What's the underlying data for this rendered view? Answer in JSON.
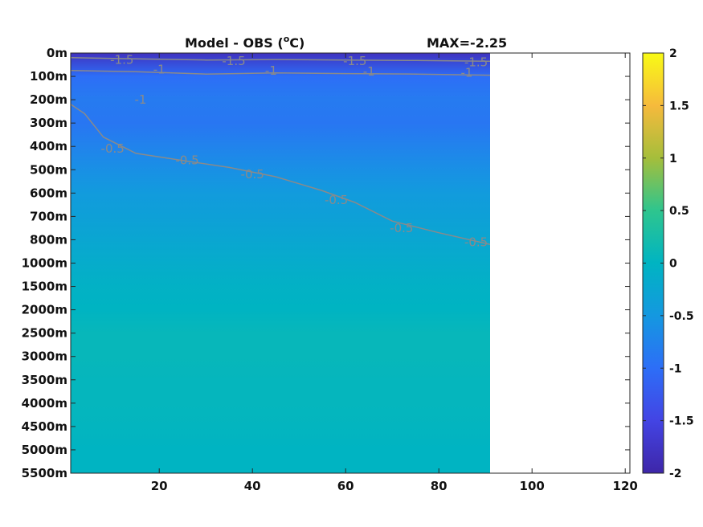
{
  "chart_data": {
    "type": "heatmap",
    "title": "Model - OBS (",
    "title_unit": "oC",
    "title_unit_superscript": "o",
    "title_unit_letter": "C",
    "title_close": ")",
    "max_label": "MAX=-2.25",
    "x_ticks": [
      20,
      40,
      60,
      80,
      100,
      120
    ],
    "xlim": [
      1,
      121
    ],
    "data_xmax": 91,
    "y_tick_labels": [
      "0m",
      "100m",
      "200m",
      "300m",
      "400m",
      "500m",
      "600m",
      "700m",
      "800m",
      "1000m",
      "1500m",
      "2000m",
      "2500m",
      "3000m",
      "3500m",
      "4000m",
      "4500m",
      "5000m",
      "5500m"
    ],
    "colorbar": {
      "ticks": [
        2,
        1.5,
        1,
        0.5,
        0,
        -0.5,
        -1,
        -1.5,
        -2
      ],
      "tick_labels": [
        "2",
        "1.5",
        "1",
        "0.5",
        "0",
        "-0.5",
        "-1",
        "-1.5",
        "-2"
      ],
      "range": [
        -2,
        2
      ],
      "colormap": "parula"
    },
    "field_rows": [
      {
        "depth": "0m",
        "value": -1.8
      },
      {
        "depth": "100m",
        "value": -1.0
      },
      {
        "depth": "200m",
        "value": -0.85
      },
      {
        "depth": "300m",
        "value": -0.9
      },
      {
        "depth": "400m",
        "value": -0.75
      },
      {
        "depth": "500m",
        "value": -0.6
      },
      {
        "depth": "600m",
        "value": -0.45
      },
      {
        "depth": "700m",
        "value": -0.35
      },
      {
        "depth": "800m",
        "value": -0.25
      },
      {
        "depth": "1000m",
        "value": -0.15
      },
      {
        "depth": "1500m",
        "value": -0.05
      },
      {
        "depth": "2000m",
        "value": 0.0
      },
      {
        "depth": "2500m",
        "value": 0.08
      },
      {
        "depth": "3000m",
        "value": 0.08
      },
      {
        "depth": "3500m",
        "value": 0.05
      },
      {
        "depth": "4000m",
        "value": 0.05
      },
      {
        "depth": "4500m",
        "value": 0.03
      },
      {
        "depth": "5000m",
        "value": 0.0
      },
      {
        "depth": "5500m",
        "value": 0.0
      }
    ],
    "contour_labels": [
      {
        "text": "-1.5",
        "x": 12,
        "depth_index": 0.3
      },
      {
        "text": "-1.5",
        "x": 36,
        "depth_index": 0.35
      },
      {
        "text": "-1.5",
        "x": 62,
        "depth_index": 0.35
      },
      {
        "text": "-1.5",
        "x": 88,
        "depth_index": 0.4
      },
      {
        "text": "-1",
        "x": 20,
        "depth_index": 0.7
      },
      {
        "text": "-1",
        "x": 44,
        "depth_index": 0.75
      },
      {
        "text": "-1",
        "x": 65,
        "depth_index": 0.8
      },
      {
        "text": "-1",
        "x": 86,
        "depth_index": 0.85
      },
      {
        "text": "-1",
        "x": 16,
        "depth_index": 2.0
      },
      {
        "text": "-0.5",
        "x": 10,
        "depth_index": 4.1
      },
      {
        "text": "-0.5",
        "x": 26,
        "depth_index": 4.6
      },
      {
        "text": "-0.5",
        "x": 40,
        "depth_index": 5.2
      },
      {
        "text": "-0.5",
        "x": 58,
        "depth_index": 6.3
      },
      {
        "text": "-0.5",
        "x": 72,
        "depth_index": 7.5
      },
      {
        "text": "-0.5",
        "x": 88,
        "depth_index": 8.1
      }
    ],
    "contour_lines": [
      {
        "level": -1.5,
        "points": [
          [
            1,
            0.2
          ],
          [
            15,
            0.25
          ],
          [
            30,
            0.3
          ],
          [
            45,
            0.28
          ],
          [
            60,
            0.3
          ],
          [
            75,
            0.32
          ],
          [
            91,
            0.35
          ]
        ]
      },
      {
        "level": -1,
        "points": [
          [
            1,
            0.75
          ],
          [
            15,
            0.8
          ],
          [
            30,
            0.9
          ],
          [
            45,
            0.85
          ],
          [
            60,
            0.88
          ],
          [
            75,
            0.9
          ],
          [
            91,
            0.95
          ]
        ]
      },
      {
        "level": -0.5,
        "points": [
          [
            1,
            2.2
          ],
          [
            4,
            2.6
          ],
          [
            8,
            3.6
          ],
          [
            15,
            4.3
          ],
          [
            25,
            4.6
          ],
          [
            35,
            4.9
          ],
          [
            45,
            5.3
          ],
          [
            55,
            5.9
          ],
          [
            62,
            6.4
          ],
          [
            70,
            7.2
          ],
          [
            80,
            7.7
          ],
          [
            91,
            8.2
          ]
        ]
      }
    ]
  }
}
